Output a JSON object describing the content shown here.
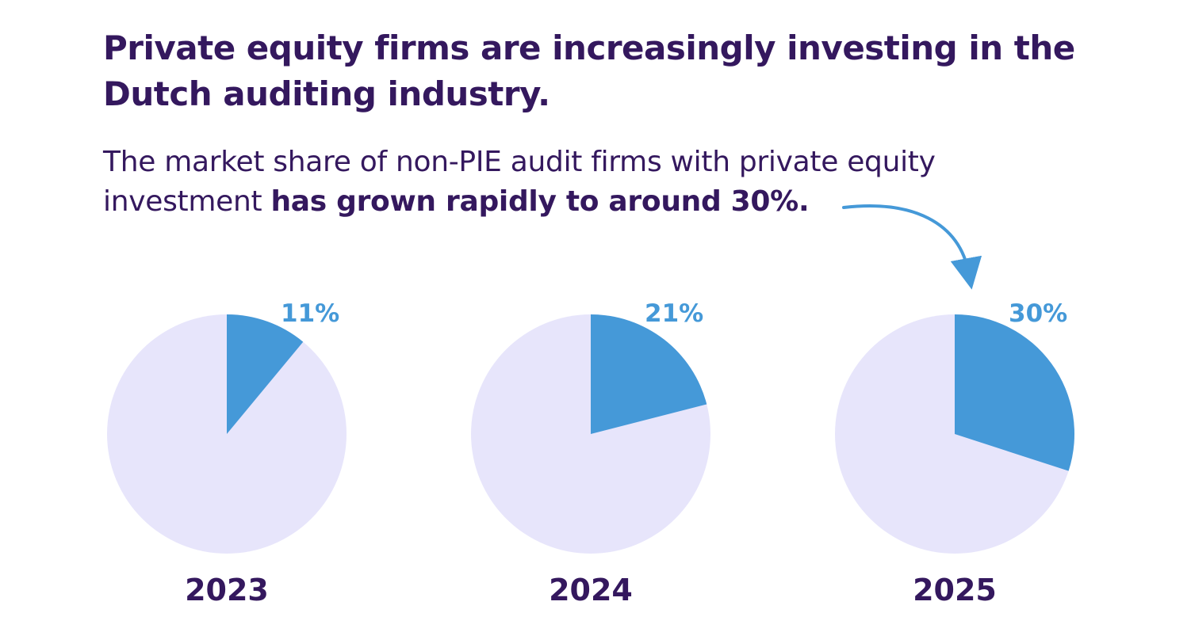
{
  "colors": {
    "heading": "#34185e",
    "share": "#4599d8",
    "remainder": "#e7e5fb",
    "background": "#ffffff"
  },
  "title": "Private equity firms are increasingly investing in the Dutch auditing industry.",
  "subtitle": {
    "lead": "The market share of non-PIE audit firms with private equity investment ",
    "emphasis": "has grown rapidly to around 30%."
  },
  "chart_data": {
    "type": "pie",
    "unit": "%",
    "series": [
      {
        "name": "2023",
        "value": 11,
        "label": "11%"
      },
      {
        "name": "2024",
        "value": 21,
        "label": "21%"
      },
      {
        "name": "2025",
        "value": 30,
        "label": "30%"
      }
    ],
    "remainder_label": "",
    "legend": "none",
    "annotation": {
      "type": "arrow",
      "from": "subtitle.emphasis",
      "to": "2025"
    }
  }
}
